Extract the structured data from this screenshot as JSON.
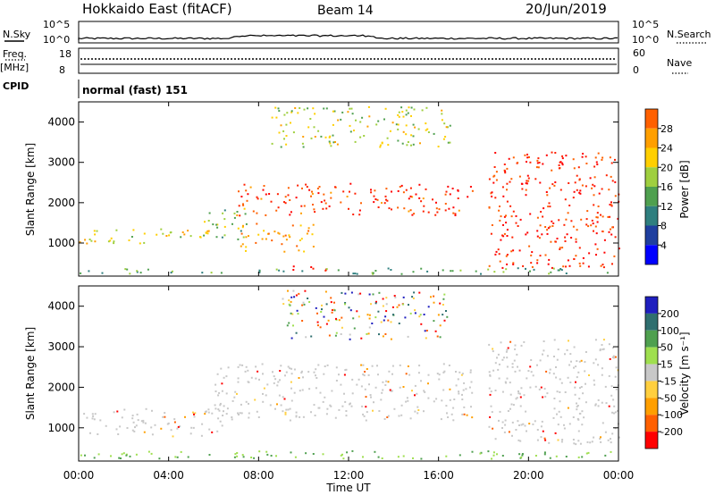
{
  "header": {
    "station": "Hokkaido East (fitACF)",
    "beam": "Beam 14",
    "date": "20/Jun/2019"
  },
  "noise_panel": {
    "left_label": "N.Sky",
    "right_label": "N.Search",
    "ticks": [
      "10^5",
      "10^0"
    ]
  },
  "freq_panel": {
    "left_label_1": "Freq.",
    "left_label_2": "[MHz]",
    "left_ticks": [
      "18",
      "8"
    ],
    "right_label": "Nave",
    "right_ticks": [
      "60",
      "0"
    ]
  },
  "cpid_panel": {
    "label": "CPID",
    "mode": "normal (fast) 151"
  },
  "x_axis": {
    "label": "Time UT",
    "ticks": [
      "00:00",
      "04:00",
      "08:00",
      "12:00",
      "16:00",
      "20:00",
      "00:00"
    ]
  },
  "colors": {
    "power": [
      "#0000ff",
      "#1f3f9f",
      "#2f7f7f",
      "#4fa04f",
      "#9fcf3f",
      "#ffcf00",
      "#ff9f00",
      "#ff6000",
      "#ff2000",
      "#ff0000"
    ],
    "velocity": [
      "#ff0000",
      "#ff6000",
      "#ff9f00",
      "#ffcf3f",
      "#c8c8c8",
      "#9fdf4f",
      "#4fa04f",
      "#2f6f6f",
      "#1f1fbf"
    ],
    "ground_scatter": "#c8c8c8"
  },
  "chart_data": [
    {
      "type": "heatmap",
      "title": "",
      "xlabel": "Time UT",
      "ylabel": "Slant Range [km]",
      "xlim": [
        0,
        24
      ],
      "ylim": [
        180,
        4500
      ],
      "yticks": [
        "1000",
        "2000",
        "3000",
        "4000"
      ],
      "colorbar": {
        "label": "Power [dB]",
        "ticks": [
          "4",
          "8",
          "12",
          "16",
          "20",
          "24",
          "28"
        ],
        "range": [
          0,
          30
        ]
      },
      "regions": [
        {
          "t": [
            0.0,
            5.8
          ],
          "range": [
            1000,
            1400
          ],
          "level": 16
        },
        {
          "t": [
            5.5,
            7.5
          ],
          "range": [
            1100,
            1900
          ],
          "level": 12
        },
        {
          "t": [
            7.0,
            17.5
          ],
          "range": [
            1700,
            2500
          ],
          "level": 26
        },
        {
          "t": [
            7.0,
            10.5
          ],
          "range": [
            800,
            1500
          ],
          "level": 20
        },
        {
          "t": [
            9.0,
            11.5
          ],
          "range": [
            300,
            450
          ],
          "level": 28
        },
        {
          "t": [
            18.2,
            24.0
          ],
          "range": [
            400,
            3300
          ],
          "level": 27
        },
        {
          "t": [
            0.0,
            24.0
          ],
          "range": [
            250,
            400
          ],
          "level": 10
        },
        {
          "t": [
            8.5,
            16.5
          ],
          "range": [
            3400,
            4400
          ],
          "level": 14
        }
      ]
    },
    {
      "type": "heatmap",
      "title": "",
      "xlabel": "Time UT",
      "ylabel": "Slant Range [km]",
      "xlim": [
        0,
        24
      ],
      "ylim": [
        180,
        4500
      ],
      "yticks": [
        "1000",
        "2000",
        "3000",
        "4000"
      ],
      "colorbar": {
        "label": "Velocity [m s⁻¹]",
        "ticks": [
          "200",
          "100",
          "50",
          "15",
          "-15",
          "-50",
          "-100",
          "-200"
        ]
      },
      "regions": [
        {
          "t": [
            0.0,
            6.5
          ],
          "range": [
            800,
            1500
          ],
          "class": "ground"
        },
        {
          "t": [
            6.0,
            17.5
          ],
          "range": [
            1200,
            2600
          ],
          "class": "ground"
        },
        {
          "t": [
            18.2,
            24.0
          ],
          "range": [
            600,
            3200
          ],
          "class": "ground"
        },
        {
          "t": [
            0.0,
            24.0
          ],
          "range": [
            250,
            450
          ],
          "class": "positive"
        },
        {
          "t": [
            9.0,
            16.5
          ],
          "range": [
            3200,
            4400
          ],
          "class": "mixed"
        }
      ]
    }
  ]
}
